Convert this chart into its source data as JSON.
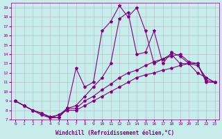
{
  "xlabel": "Windchill (Refroidissement éolien,°C)",
  "bg_color": "#c8ecec",
  "line_color": "#800080",
  "xlim": [
    -0.5,
    23.5
  ],
  "ylim": [
    7,
    19.5
  ],
  "xticks": [
    0,
    1,
    2,
    3,
    4,
    5,
    6,
    7,
    8,
    9,
    10,
    11,
    12,
    13,
    14,
    15,
    16,
    17,
    18,
    19,
    20,
    21,
    22,
    23
  ],
  "yticks": [
    7,
    8,
    9,
    10,
    11,
    12,
    13,
    14,
    15,
    16,
    17,
    18,
    19
  ],
  "series1_x": [
    0,
    1,
    2,
    3,
    4,
    5,
    6,
    7,
    8,
    9,
    10,
    11,
    12,
    13,
    14,
    15,
    16,
    17,
    18,
    19,
    20,
    21,
    22,
    23
  ],
  "series1_y": [
    9.0,
    8.5,
    8.0,
    7.5,
    7.2,
    7.2,
    8.3,
    12.5,
    10.5,
    11.0,
    16.5,
    17.5,
    19.2,
    18.0,
    19.0,
    16.5,
    13.0,
    13.5,
    14.0,
    13.0,
    13.0,
    12.0,
    11.5,
    11.0
  ],
  "series2_x": [
    0,
    1,
    2,
    3,
    4,
    5,
    6,
    7,
    8,
    9,
    10,
    11,
    12,
    13,
    14,
    15,
    16,
    17,
    18,
    19,
    20,
    21,
    22,
    23
  ],
  "series2_y": [
    9.0,
    8.5,
    8.0,
    7.7,
    7.2,
    7.5,
    8.2,
    8.5,
    9.5,
    10.5,
    11.5,
    13.0,
    17.8,
    18.5,
    14.0,
    14.2,
    16.5,
    13.0,
    14.2,
    13.8,
    13.0,
    12.8,
    11.5,
    11.0
  ],
  "series3_x": [
    0,
    1,
    2,
    3,
    4,
    5,
    6,
    7,
    8,
    9,
    10,
    11,
    12,
    13,
    14,
    15,
    16,
    17,
    18,
    19,
    20,
    21,
    22,
    23
  ],
  "series3_y": [
    9.0,
    8.5,
    8.0,
    7.7,
    7.3,
    7.2,
    8.2,
    8.2,
    9.0,
    9.5,
    10.2,
    10.8,
    11.5,
    12.0,
    12.3,
    12.8,
    13.2,
    13.5,
    13.8,
    14.0,
    13.2,
    13.0,
    11.2,
    11.0
  ],
  "series4_x": [
    0,
    1,
    2,
    3,
    4,
    5,
    6,
    7,
    8,
    9,
    10,
    11,
    12,
    13,
    14,
    15,
    16,
    17,
    18,
    19,
    20,
    21,
    22,
    23
  ],
  "series4_y": [
    9.0,
    8.5,
    8.0,
    7.7,
    7.3,
    7.5,
    8.0,
    8.0,
    8.5,
    9.0,
    9.5,
    10.0,
    10.5,
    11.0,
    11.5,
    11.8,
    12.0,
    12.3,
    12.5,
    12.8,
    13.0,
    13.0,
    11.0,
    11.0
  ]
}
